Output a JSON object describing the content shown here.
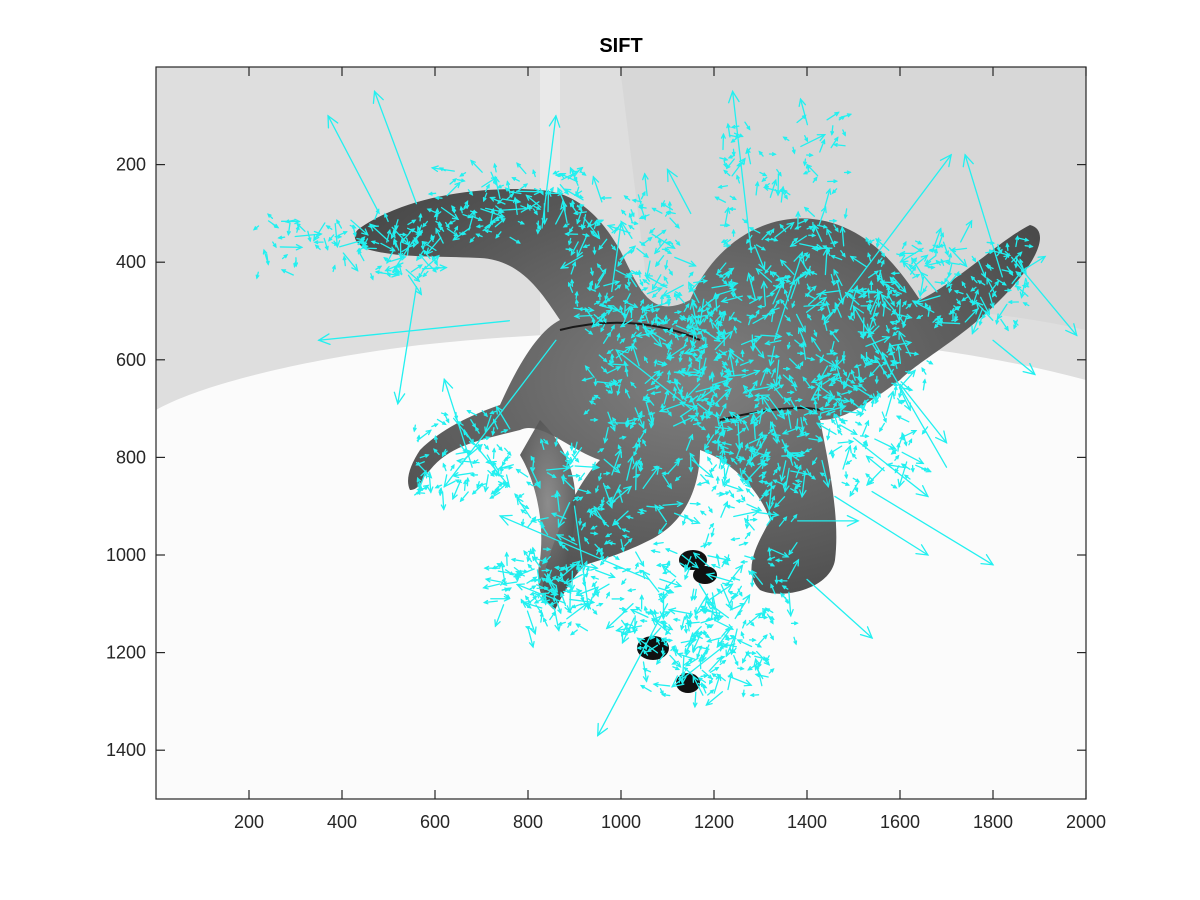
{
  "chart_data": {
    "type": "scatter",
    "title": "SIFT",
    "xlabel": "",
    "ylabel": "",
    "xlim": [
      0,
      2000
    ],
    "ylim": [
      1500,
      0
    ],
    "y_axis_direction": "reversed (image coordinates)",
    "x_ticks": [
      200,
      400,
      600,
      800,
      1000,
      1200,
      1400,
      1600,
      1800,
      2000
    ],
    "y_ticks": [
      200,
      400,
      600,
      800,
      1000,
      1200,
      1400
    ],
    "grid": false,
    "legend": "none",
    "background_image": "grayscale photo of a toy spinosaurus dinosaur standing on a white surface",
    "series": [
      {
        "marker": "arrow (keypoint orientation & scale)",
        "color": "#22f0f0",
        "points": [
          {
            "x": 480,
            "y": 300,
            "dx": -110,
            "dy": -200
          },
          {
            "x": 560,
            "y": 280,
            "dx": -90,
            "dy": -230
          },
          {
            "x": 830,
            "y": 330,
            "dx": 30,
            "dy": -230
          },
          {
            "x": 1280,
            "y": 380,
            "dx": -40,
            "dy": -330
          },
          {
            "x": 1820,
            "y": 430,
            "dx": -80,
            "dy": -250
          },
          {
            "x": 1840,
            "y": 390,
            "dx": 140,
            "dy": 160
          },
          {
            "x": 1450,
            "y": 510,
            "dx": 260,
            "dy": -330
          },
          {
            "x": 760,
            "y": 520,
            "dx": -410,
            "dy": 40
          },
          {
            "x": 560,
            "y": 450,
            "dx": -40,
            "dy": 240
          },
          {
            "x": 860,
            "y": 560,
            "dx": -240,
            "dy": 300
          },
          {
            "x": 1700,
            "y": 820,
            "dx": -200,
            "dy": -330
          },
          {
            "x": 1540,
            "y": 870,
            "dx": 260,
            "dy": 150
          },
          {
            "x": 1460,
            "y": 880,
            "dx": 200,
            "dy": 120
          },
          {
            "x": 1100,
            "y": 1100,
            "dx": -150,
            "dy": 270
          },
          {
            "x": 1060,
            "y": 1050,
            "dx": -320,
            "dy": -130
          },
          {
            "x": 1400,
            "y": 1050,
            "dx": 140,
            "dy": 120
          },
          {
            "x": 1600,
            "y": 650,
            "dx": 100,
            "dy": 120
          },
          {
            "x": 1330,
            "y": 560,
            "dx": 60,
            "dy": -180
          },
          {
            "x": 1150,
            "y": 700,
            "dx": -160,
            "dy": -120
          },
          {
            "x": 1230,
            "y": 1180,
            "dx": -120,
            "dy": 90
          },
          {
            "x": 900,
            "y": 900,
            "dx": 30,
            "dy": 210
          },
          {
            "x": 640,
            "y": 720,
            "dx": 120,
            "dy": 140
          },
          {
            "x": 1800,
            "y": 560,
            "dx": 90,
            "dy": 70
          },
          {
            "x": 1500,
            "y": 760,
            "dx": 160,
            "dy": 120
          },
          {
            "x": 680,
            "y": 820,
            "dx": -60,
            "dy": -180
          },
          {
            "x": 1380,
            "y": 930,
            "dx": 130,
            "dy": 0
          },
          {
            "x": 1150,
            "y": 300,
            "dx": -50,
            "dy": -90
          },
          {
            "x": 980,
            "y": 460,
            "dx": 20,
            "dy": -140
          }
        ]
      }
    ]
  }
}
